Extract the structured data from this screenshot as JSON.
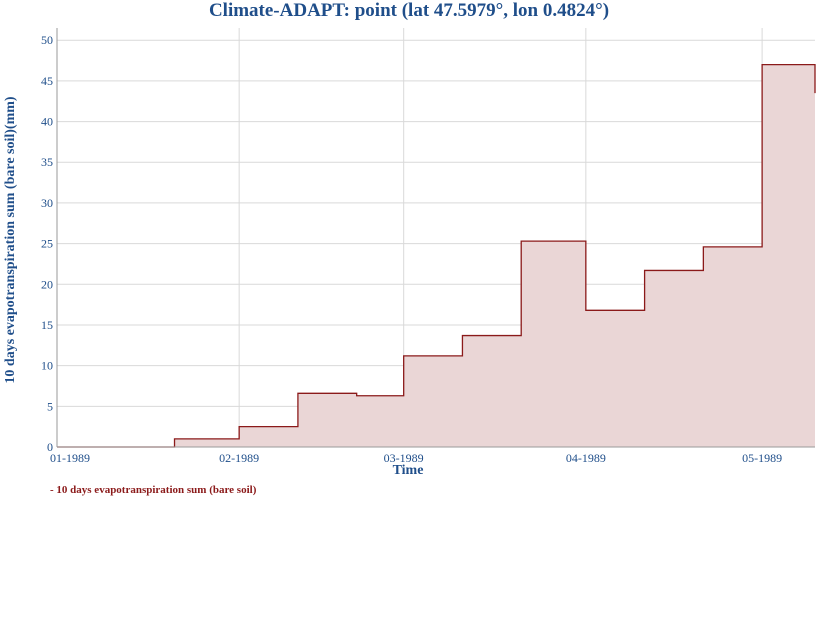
{
  "chart_data": {
    "type": "area",
    "step": true,
    "title": "Climate-ADAPT: point (lat 47.5979°, lon 0.4824°)",
    "xlabel": "Time",
    "ylabel": "10 days evapotranspiration sum (bare soil)(mm)",
    "ylim": [
      0,
      51.5
    ],
    "yticks": [
      0,
      5,
      10,
      15,
      20,
      25,
      30,
      35,
      40,
      45,
      50
    ],
    "xlim": [
      "1989-01-01",
      "1989-05-10"
    ],
    "xticks": [
      {
        "date": "1989-01-01",
        "label": "01-1989"
      },
      {
        "date": "1989-02-01",
        "label": "02-1989"
      },
      {
        "date": "1989-03-01",
        "label": "03-1989"
      },
      {
        "date": "1989-04-01",
        "label": "04-1989"
      },
      {
        "date": "1989-05-01",
        "label": "05-1989"
      }
    ],
    "grid": true,
    "legend_position": "bottom-left",
    "series": [
      {
        "name": "10 days evapotranspiration sum (bare soil)",
        "color": "#8b1a1a",
        "fill": "#ead6d6",
        "points": [
          {
            "x": "1989-01-01",
            "y": 0
          },
          {
            "x": "1989-01-21",
            "y": 1.0
          },
          {
            "x": "1989-02-01",
            "y": 2.5
          },
          {
            "x": "1989-02-11",
            "y": 6.6
          },
          {
            "x": "1989-02-21",
            "y": 6.3
          },
          {
            "x": "1989-03-01",
            "y": 11.2
          },
          {
            "x": "1989-03-11",
            "y": 13.7
          },
          {
            "x": "1989-03-21",
            "y": 25.3
          },
          {
            "x": "1989-04-01",
            "y": 16.8
          },
          {
            "x": "1989-04-11",
            "y": 21.7
          },
          {
            "x": "1989-04-21",
            "y": 24.6
          },
          {
            "x": "1989-05-01",
            "y": 47.0
          },
          {
            "x": "1989-05-11",
            "y": 43.5
          }
        ]
      }
    ]
  }
}
